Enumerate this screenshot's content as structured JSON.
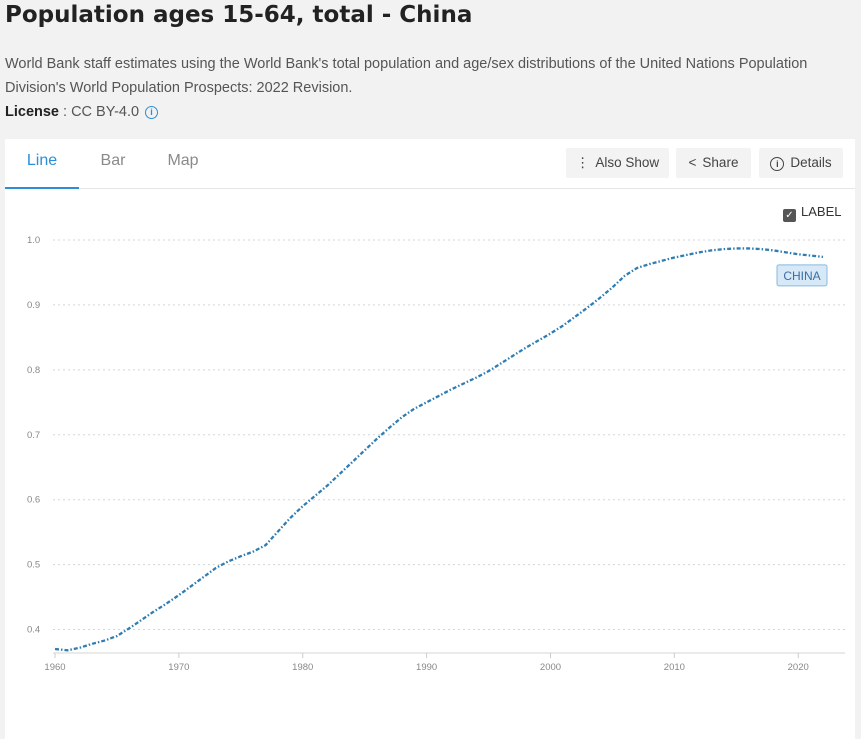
{
  "header": {
    "title": "Population ages 15-64, total - China",
    "description": "World Bank staff estimates using the World Bank's total population and age/sex distributions of the United Nations Population Division's World Population Prospects: 2022 Revision.",
    "license_label": "License",
    "license_value": " : CC BY-4.0",
    "info_icon": "i"
  },
  "tabs": [
    {
      "label": "Line",
      "active": true
    },
    {
      "label": "Bar",
      "active": false
    },
    {
      "label": "Map",
      "active": false
    }
  ],
  "toolbar": {
    "also_show": "Also Show",
    "also_show_icon": "⋮",
    "share": "Share",
    "share_icon": "<",
    "details": "Details",
    "details_icon": "i"
  },
  "label_toggle": {
    "checked": true,
    "text": "LABEL",
    "check_glyph": "✓"
  },
  "accent_color": "#2a8fd8",
  "line_color": "#2f7db3",
  "chart_data": {
    "type": "line",
    "series": [
      {
        "label_tag": "CHINA",
        "x": [
          1960,
          1961,
          1962,
          1963,
          1964,
          1965,
          1966,
          1967,
          1968,
          1969,
          1970,
          1971,
          1972,
          1973,
          1974,
          1975,
          1976,
          1977,
          1978,
          1979,
          1980,
          1981,
          1982,
          1983,
          1984,
          1985,
          1986,
          1987,
          1988,
          1989,
          1990,
          1991,
          1992,
          1993,
          1994,
          1995,
          1996,
          1997,
          1998,
          1999,
          2000,
          2001,
          2002,
          2003,
          2004,
          2005,
          2006,
          2007,
          2008,
          2009,
          2010,
          2011,
          2012,
          2013,
          2014,
          2015,
          2016,
          2017,
          2018,
          2019,
          2020,
          2021,
          2022
        ],
        "values": [
          0.37,
          0.368,
          0.372,
          0.378,
          0.383,
          0.39,
          0.402,
          0.415,
          0.428,
          0.44,
          0.453,
          0.467,
          0.481,
          0.495,
          0.505,
          0.513,
          0.52,
          0.53,
          0.551,
          0.572,
          0.59,
          0.606,
          0.622,
          0.64,
          0.658,
          0.676,
          0.694,
          0.711,
          0.727,
          0.74,
          0.75,
          0.76,
          0.77,
          0.779,
          0.788,
          0.798,
          0.81,
          0.822,
          0.834,
          0.845,
          0.856,
          0.868,
          0.882,
          0.896,
          0.911,
          0.927,
          0.945,
          0.957,
          0.963,
          0.968,
          0.973,
          0.977,
          0.981,
          0.984,
          0.986,
          0.987,
          0.987,
          0.986,
          0.984,
          0.981,
          0.978,
          0.976,
          0.974
        ]
      }
    ],
    "ylim": [
      0.35,
      1.0
    ],
    "y_ticks": [
      0.4,
      0.5,
      0.6,
      0.7,
      0.8,
      0.9,
      1.0
    ],
    "y_tick_labels": [
      "0.4",
      "0.5",
      "0.6",
      "0.7",
      "0.8",
      "0.9",
      "1.0"
    ],
    "x_ticks": [
      1960,
      1970,
      1980,
      1990,
      2000,
      2010,
      2020
    ],
    "x_tick_labels": [
      "1960",
      "1970",
      "1980",
      "1990",
      "2000",
      "2010",
      "2020"
    ],
    "xlim": [
      1960,
      2022
    ],
    "grid": true,
    "grid_style": "dotted horizontal"
  }
}
